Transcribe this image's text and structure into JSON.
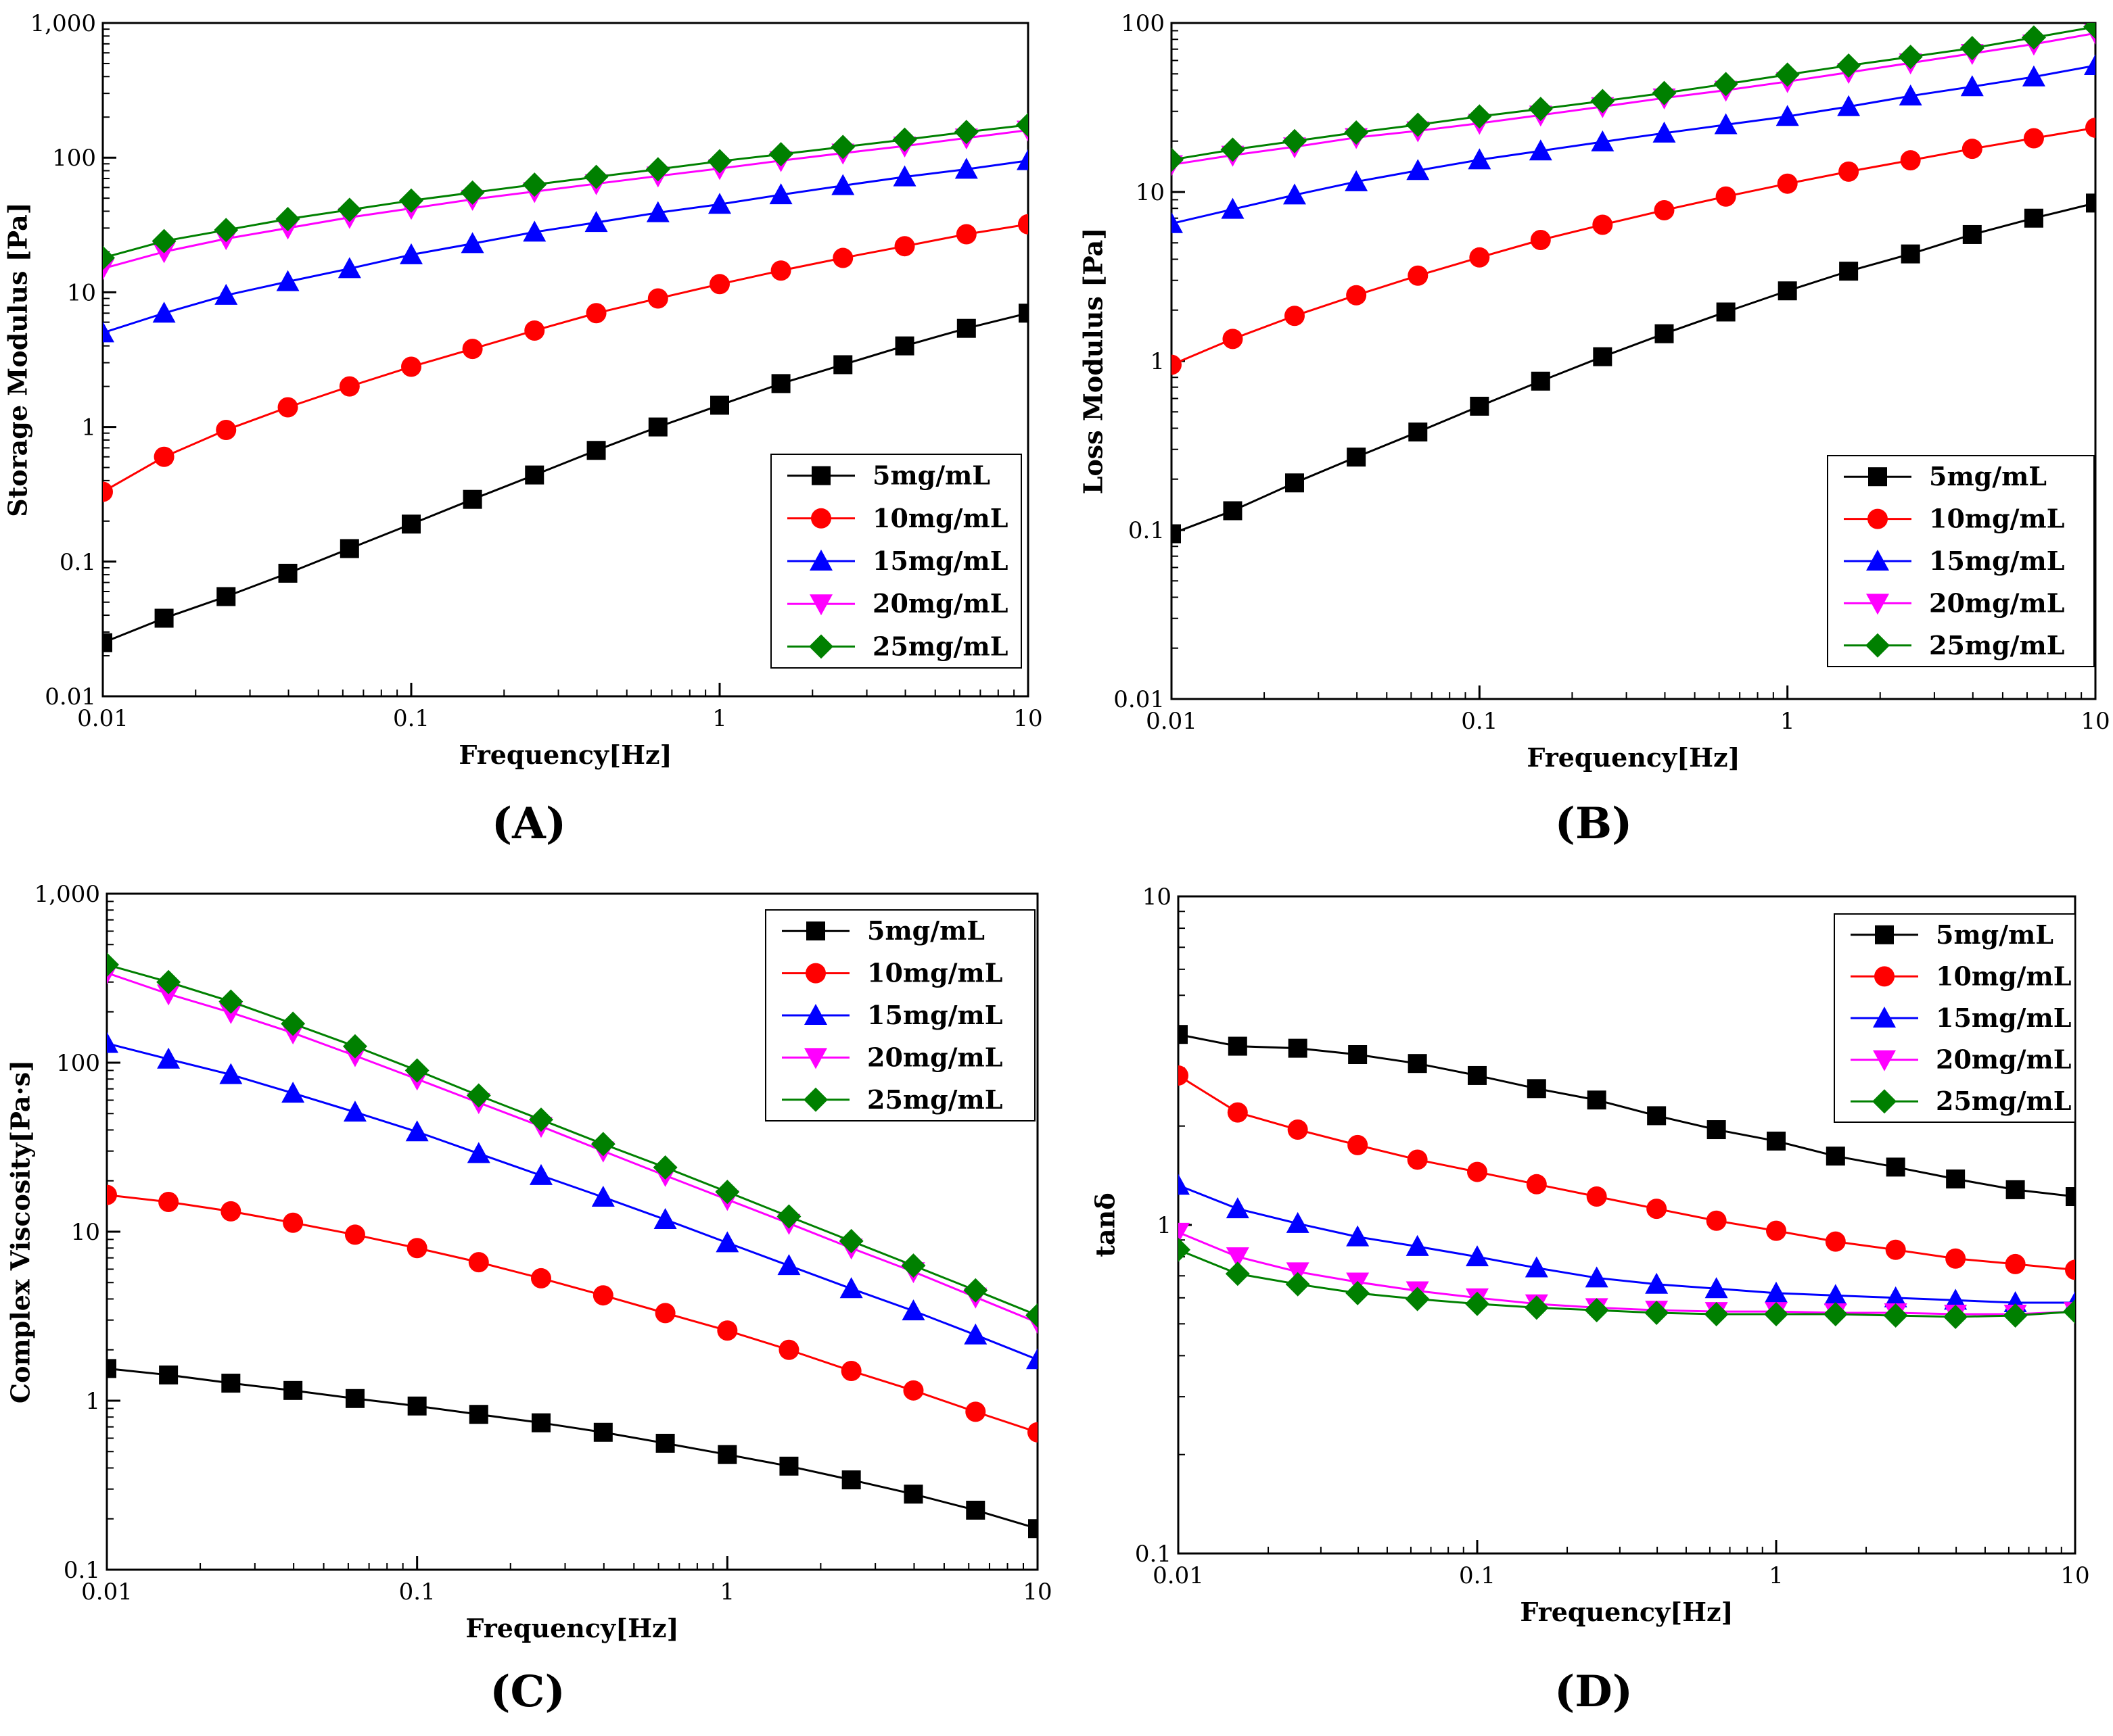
{
  "series_styles": [
    {
      "name": "5mg/mL",
      "color": "#000000",
      "marker": "square"
    },
    {
      "name": "10mg/mL",
      "color": "#ff0000",
      "marker": "circle"
    },
    {
      "name": "15mg/mL",
      "color": "#0000ff",
      "marker": "triangle-up"
    },
    {
      "name": "20mg/mL",
      "color": "#ff00ff",
      "marker": "triangle-down"
    },
    {
      "name": "25mg/mL",
      "color": "#008000",
      "marker": "diamond"
    }
  ],
  "chart_data": [
    {
      "id": "A",
      "panel_label": "(A)",
      "type": "line",
      "xscale": "log",
      "yscale": "log",
      "xlabel": "Frequency[Hz]",
      "ylabel": "Storage Modulus [Pa]",
      "xlim": [
        0.01,
        10
      ],
      "ylim": [
        0.01,
        1000
      ],
      "xticks": [
        {
          "v": 0.01,
          "label": "0.01"
        },
        {
          "v": 0.1,
          "label": "0.1"
        },
        {
          "v": 1,
          "label": "1"
        },
        {
          "v": 10,
          "label": "10"
        }
      ],
      "yticks": [
        {
          "v": 0.01,
          "label": "0.01"
        },
        {
          "v": 0.1,
          "label": "0.1"
        },
        {
          "v": 1,
          "label": "1"
        },
        {
          "v": 10,
          "label": "10"
        },
        {
          "v": 100,
          "label": "100"
        },
        {
          "v": 1000,
          "label": "1,000"
        }
      ],
      "legend_position": "bottom-right",
      "x": [
        0.01,
        0.0158,
        0.0251,
        0.0398,
        0.0631,
        0.1,
        0.158,
        0.251,
        0.398,
        0.631,
        1,
        1.58,
        2.51,
        3.98,
        6.31,
        10
      ],
      "series": [
        {
          "name": "5mg/mL",
          "values": [
            0.025,
            0.038,
            0.055,
            0.082,
            0.125,
            0.19,
            0.29,
            0.44,
            0.67,
            1.0,
            1.45,
            2.1,
            2.9,
            4.0,
            5.4,
            7.0
          ]
        },
        {
          "name": "10mg/mL",
          "values": [
            0.33,
            0.6,
            0.95,
            1.4,
            2.0,
            2.8,
            3.8,
            5.2,
            7.0,
            9.0,
            11.5,
            14.5,
            18,
            22,
            27,
            32
          ]
        },
        {
          "name": "15mg/mL",
          "values": [
            5.0,
            7.0,
            9.5,
            12,
            15,
            19,
            23,
            28,
            33,
            39,
            45,
            53,
            62,
            72,
            82,
            95
          ]
        },
        {
          "name": "20mg/mL",
          "values": [
            15,
            20,
            25,
            30,
            36,
            42,
            49,
            56,
            64,
            73,
            83,
            95,
            108,
            122,
            140,
            160
          ]
        },
        {
          "name": "25mg/mL",
          "values": [
            18,
            24,
            29,
            35,
            41,
            48,
            55,
            63,
            72,
            82,
            94,
            106,
            120,
            136,
            155,
            175
          ]
        }
      ]
    },
    {
      "id": "B",
      "panel_label": "(B)",
      "type": "line",
      "xscale": "log",
      "yscale": "log",
      "xlabel": "Frequency[Hz]",
      "ylabel": "Loss Modulus [Pa]",
      "xlim": [
        0.01,
        10
      ],
      "ylim": [
        0.01,
        100
      ],
      "xticks": [
        {
          "v": 0.01,
          "label": "0.01"
        },
        {
          "v": 0.1,
          "label": "0.1"
        },
        {
          "v": 1,
          "label": "1"
        },
        {
          "v": 10,
          "label": "10"
        }
      ],
      "yticks": [
        {
          "v": 0.01,
          "label": "0.01"
        },
        {
          "v": 0.1,
          "label": "0.1"
        },
        {
          "v": 1,
          "label": "1"
        },
        {
          "v": 10,
          "label": "10"
        },
        {
          "v": 100,
          "label": "100"
        }
      ],
      "legend_position": "bottom-right",
      "x": [
        0.01,
        0.0158,
        0.0251,
        0.0398,
        0.0631,
        0.1,
        0.158,
        0.251,
        0.398,
        0.631,
        1,
        1.58,
        2.51,
        3.98,
        6.31,
        10
      ],
      "series": [
        {
          "name": "5mg/mL",
          "values": [
            0.095,
            0.13,
            0.19,
            0.27,
            0.38,
            0.54,
            0.76,
            1.06,
            1.45,
            1.95,
            2.6,
            3.4,
            4.3,
            5.6,
            7.0,
            8.6
          ]
        },
        {
          "name": "10mg/mL",
          "values": [
            0.95,
            1.35,
            1.85,
            2.45,
            3.2,
            4.1,
            5.2,
            6.4,
            7.8,
            9.4,
            11.2,
            13.2,
            15.4,
            18,
            20.8,
            24
          ]
        },
        {
          "name": "15mg/mL",
          "values": [
            6.5,
            7.9,
            9.6,
            11.5,
            13.4,
            15.5,
            17.5,
            19.8,
            22.3,
            25,
            28,
            32,
            37,
            42,
            48,
            56
          ]
        },
        {
          "name": "20mg/mL",
          "values": [
            14.5,
            16.5,
            18.5,
            21,
            23,
            25.5,
            28.5,
            32,
            36,
            40,
            45,
            51,
            58,
            66,
            75,
            87
          ]
        },
        {
          "name": "25mg/mL",
          "values": [
            15.5,
            17.8,
            20,
            22.5,
            25,
            28,
            31,
            34.5,
            38.5,
            43.5,
            49.5,
            56,
            63,
            71,
            82,
            95
          ]
        }
      ]
    },
    {
      "id": "C",
      "panel_label": "(C)",
      "type": "line",
      "xscale": "log",
      "yscale": "log",
      "xlabel": "Frequency[Hz]",
      "ylabel": "Complex Viscosity[Pa·s]",
      "xlim": [
        0.01,
        10
      ],
      "ylim": [
        0.1,
        1000
      ],
      "xticks": [
        {
          "v": 0.01,
          "label": "0.01"
        },
        {
          "v": 0.1,
          "label": "0.1"
        },
        {
          "v": 1,
          "label": "1"
        },
        {
          "v": 10,
          "label": "10"
        }
      ],
      "yticks": [
        {
          "v": 0.1,
          "label": "0.1"
        },
        {
          "v": 1,
          "label": "1"
        },
        {
          "v": 10,
          "label": "10"
        },
        {
          "v": 100,
          "label": "100"
        },
        {
          "v": 1000,
          "label": "1,000"
        }
      ],
      "legend_position": "top-right",
      "x": [
        0.01,
        0.0158,
        0.0251,
        0.0398,
        0.0631,
        0.1,
        0.158,
        0.251,
        0.398,
        0.631,
        1,
        1.58,
        2.51,
        3.98,
        6.31,
        10
      ],
      "series": [
        {
          "name": "5mg/mL",
          "values": [
            1.55,
            1.42,
            1.27,
            1.15,
            1.03,
            0.93,
            0.83,
            0.74,
            0.65,
            0.56,
            0.48,
            0.41,
            0.34,
            0.28,
            0.225,
            0.175
          ]
        },
        {
          "name": "10mg/mL",
          "values": [
            16.5,
            15,
            13.2,
            11.3,
            9.6,
            8.0,
            6.6,
            5.3,
            4.2,
            3.3,
            2.6,
            2.0,
            1.5,
            1.15,
            0.86,
            0.65
          ]
        },
        {
          "name": "15mg/mL",
          "values": [
            130,
            105,
            85,
            66,
            51,
            39,
            29,
            21.5,
            16,
            11.8,
            8.6,
            6.3,
            4.6,
            3.4,
            2.45,
            1.75
          ]
        },
        {
          "name": "20mg/mL",
          "values": [
            340,
            255,
            198,
            150,
            110,
            80,
            58,
            42,
            30,
            21.5,
            15.5,
            11.2,
            8.0,
            5.8,
            4.1,
            2.9
          ]
        },
        {
          "name": "25mg/mL",
          "values": [
            380,
            300,
            230,
            170,
            125,
            90,
            64,
            46,
            33,
            24,
            17.2,
            12.3,
            8.8,
            6.3,
            4.5,
            3.2
          ]
        }
      ]
    },
    {
      "id": "D",
      "panel_label": "(D)",
      "type": "line",
      "xscale": "log",
      "yscale": "log",
      "xlabel": "Frequency[Hz]",
      "ylabel": "tanδ",
      "xlim": [
        0.01,
        10
      ],
      "ylim": [
        0.1,
        10
      ],
      "xticks": [
        {
          "v": 0.01,
          "label": "0.01"
        },
        {
          "v": 0.1,
          "label": "0.1"
        },
        {
          "v": 1,
          "label": "1"
        },
        {
          "v": 10,
          "label": "10"
        }
      ],
      "yticks": [
        {
          "v": 0.1,
          "label": "0.1"
        },
        {
          "v": 1,
          "label": "1"
        },
        {
          "v": 10,
          "label": "10"
        }
      ],
      "legend_position": "top-right",
      "x": [
        0.01,
        0.0158,
        0.0251,
        0.0398,
        0.0631,
        0.1,
        0.158,
        0.251,
        0.398,
        0.631,
        1,
        1.58,
        2.51,
        3.98,
        6.31,
        10
      ],
      "series": [
        {
          "name": "5mg/mL",
          "values": [
            3.8,
            3.5,
            3.45,
            3.3,
            3.1,
            2.85,
            2.6,
            2.4,
            2.15,
            1.95,
            1.8,
            1.62,
            1.5,
            1.38,
            1.28,
            1.22
          ]
        },
        {
          "name": "10mg/mL",
          "values": [
            2.85,
            2.2,
            1.95,
            1.75,
            1.58,
            1.45,
            1.33,
            1.22,
            1.12,
            1.03,
            0.96,
            0.89,
            0.84,
            0.79,
            0.76,
            0.73
          ]
        },
        {
          "name": "15mg/mL",
          "values": [
            1.32,
            1.12,
            1.01,
            0.92,
            0.86,
            0.8,
            0.74,
            0.69,
            0.66,
            0.64,
            0.62,
            0.61,
            0.6,
            0.59,
            0.58,
            0.58
          ]
        },
        {
          "name": "20mg/mL",
          "values": [
            0.95,
            0.8,
            0.72,
            0.67,
            0.63,
            0.6,
            0.575,
            0.56,
            0.55,
            0.545,
            0.545,
            0.54,
            0.54,
            0.535,
            0.535,
            0.545
          ]
        },
        {
          "name": "25mg/mL",
          "values": [
            0.84,
            0.71,
            0.66,
            0.62,
            0.595,
            0.575,
            0.56,
            0.55,
            0.54,
            0.535,
            0.535,
            0.535,
            0.53,
            0.525,
            0.53,
            0.545
          ]
        }
      ]
    }
  ]
}
